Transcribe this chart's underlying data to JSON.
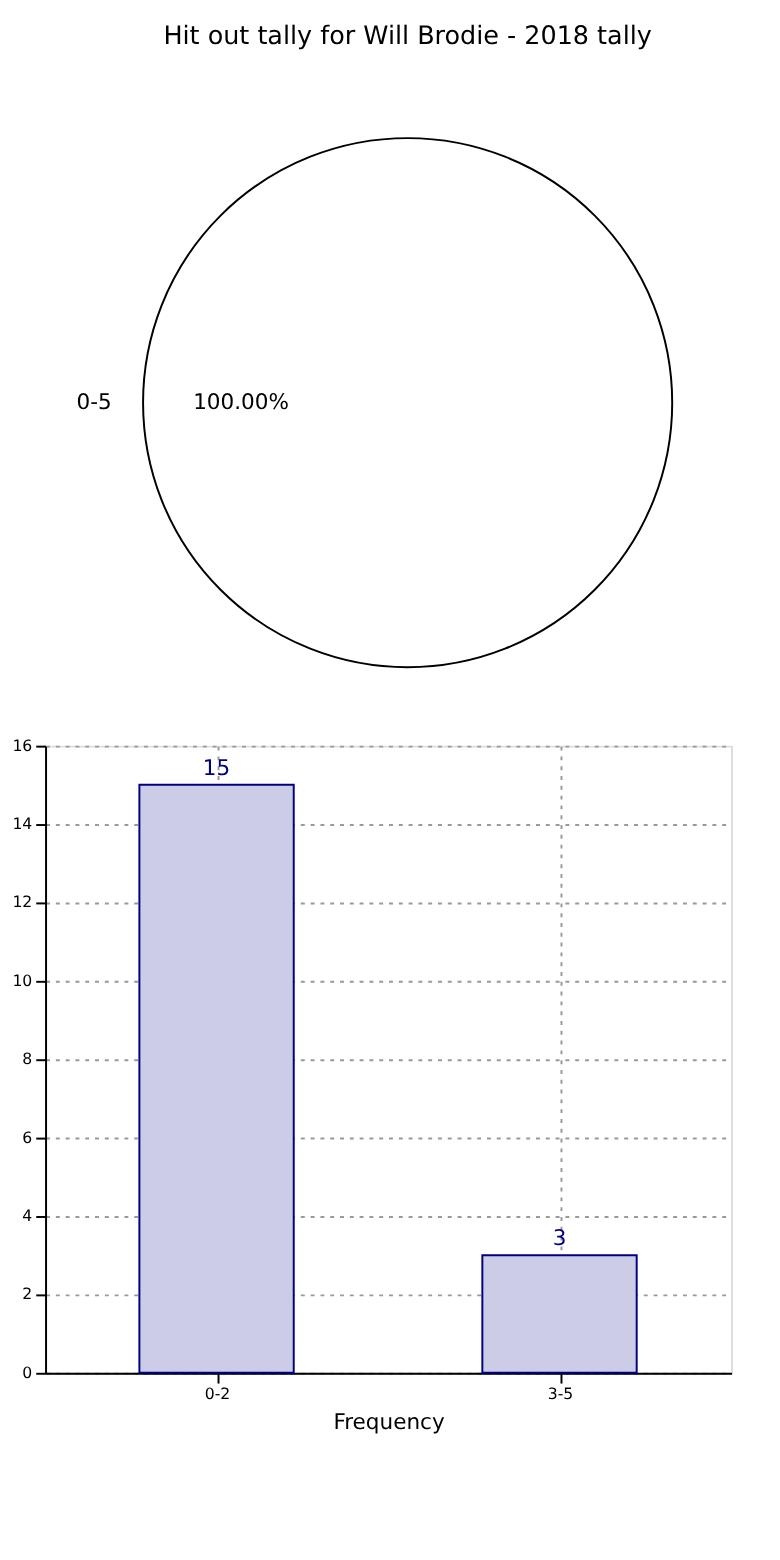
{
  "chart_data": [
    {
      "type": "pie",
      "title": "Hit out tally for Will Brodie - 2018 tally",
      "categories": [
        "0-5"
      ],
      "values": [
        100
      ],
      "colors": [
        "#ffffff"
      ],
      "value_labels": [
        "100.00%"
      ]
    },
    {
      "type": "bar",
      "categories": [
        "0-2",
        "3-5"
      ],
      "values": [
        15,
        3
      ],
      "color": "#cccce6",
      "xlabel": "Frequency",
      "ylim": [
        0,
        16
      ],
      "yticks": [
        0,
        2,
        4,
        6,
        8,
        10,
        12,
        14,
        16
      ],
      "grid": true,
      "data_labels": true
    }
  ]
}
